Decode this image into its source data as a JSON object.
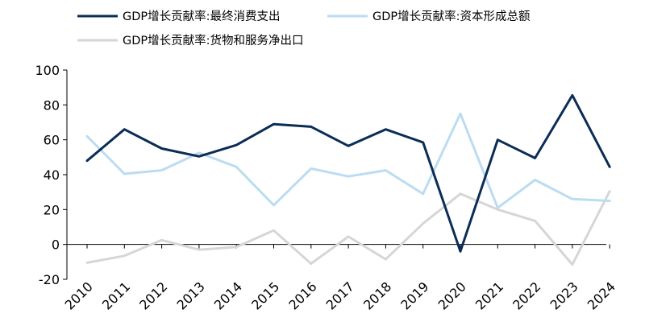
{
  "chart_data": {
    "type": "line",
    "title": "",
    "xlabel": "",
    "ylabel": "",
    "ylim": [
      -20,
      100
    ],
    "yticks": [
      -20,
      0,
      20,
      40,
      60,
      80,
      100
    ],
    "grid": false,
    "legend_position": "top",
    "categories": [
      "2010",
      "2011",
      "2012",
      "2013",
      "2014",
      "2015",
      "2016",
      "2017",
      "2018",
      "2019",
      "2020",
      "2021",
      "2022",
      "2023",
      "2024"
    ],
    "series": [
      {
        "name": "GDP增长贡献率:最终消费支出",
        "color": "#0b2d55",
        "values": [
          48,
          66,
          55,
          50.5,
          57,
          69,
          67.5,
          56.5,
          66,
          58.5,
          -4,
          60,
          49.5,
          85.5,
          44.5
        ]
      },
      {
        "name": "GDP增长贡献率:资本形成总额",
        "color": "#bcdcf1",
        "values": [
          62,
          40.5,
          42.5,
          52.5,
          44.5,
          22.5,
          43.5,
          39,
          42.5,
          29,
          75,
          21,
          37,
          26,
          25
        ]
      },
      {
        "name": "GDP增长贡献率:货物和服务净出口",
        "color": "#d6d6d6",
        "values": [
          -10.5,
          -6.5,
          2.5,
          -3,
          -1.5,
          8,
          -11,
          4.5,
          -8.5,
          12,
          29,
          20,
          13.5,
          -11.5,
          30.5
        ]
      }
    ]
  }
}
